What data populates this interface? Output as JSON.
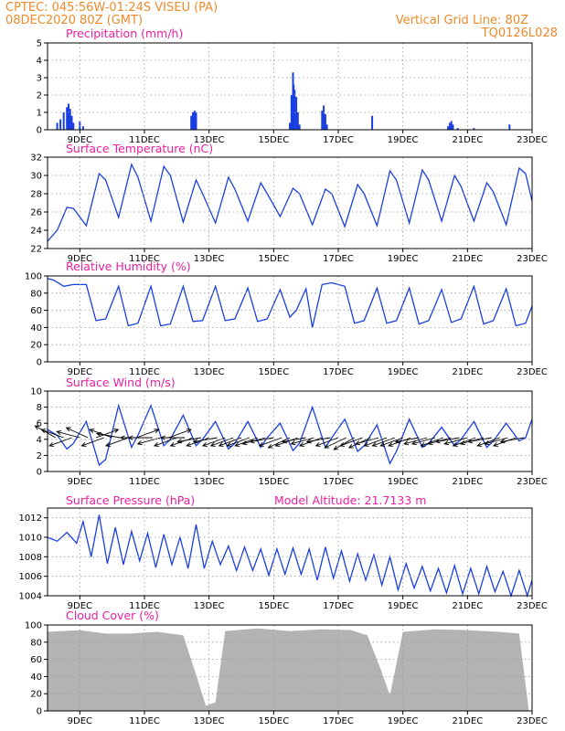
{
  "header": {
    "station": "CPTEC:   045:56W-01:24S   VISEU  (PA)",
    "run": "08DEC2020  80Z  (GMT)",
    "grid_note": "Vertical Grid Line: 80Z",
    "code": "TQ0126L028"
  },
  "colors": {
    "header": "#ee8a2a",
    "title": "#ee1fa0",
    "series": "#1a3fe0",
    "cloud": "#b3b3b3"
  },
  "x_axis": {
    "start_day": 8,
    "end_day": 23,
    "tick_days": [
      9,
      11,
      13,
      15,
      17,
      19,
      21,
      23
    ],
    "tick_labels": [
      "9DEC",
      "11DEC",
      "13DEC",
      "15DEC",
      "17DEC",
      "19DEC",
      "21DEC",
      "23DEC"
    ]
  },
  "chart_data": [
    {
      "id": "precip",
      "type": "bar",
      "title": "Precipitation (mm/h)",
      "ylim": [
        0,
        5
      ],
      "yticks": [
        0,
        1,
        2,
        3,
        4,
        5
      ],
      "x": [
        8.3,
        8.4,
        8.5,
        8.6,
        8.65,
        8.7,
        8.75,
        8.8,
        9.0,
        9.1,
        12.45,
        12.5,
        12.55,
        12.6,
        15.5,
        15.55,
        15.6,
        15.62,
        15.65,
        15.7,
        15.75,
        15.8,
        16.5,
        16.55,
        16.6,
        16.65,
        18.05,
        20.4,
        20.45,
        20.5,
        20.55,
        20.7,
        21.2,
        22.3
      ],
      "y": [
        0.4,
        0.6,
        1.0,
        1.3,
        1.5,
        1.2,
        0.8,
        0.4,
        0.5,
        0.2,
        0.8,
        1.0,
        1.1,
        1.0,
        0.4,
        2.0,
        3.3,
        2.6,
        2.3,
        1.9,
        1.0,
        0.3,
        1.1,
        1.4,
        0.9,
        0.3,
        0.8,
        0.2,
        0.4,
        0.5,
        0.3,
        0.1,
        0.1,
        0.3
      ]
    },
    {
      "id": "temp",
      "type": "line",
      "title": "Surface Temperature (nC)",
      "ylim": [
        22,
        32
      ],
      "yticks": [
        22,
        24,
        26,
        28,
        30,
        32
      ],
      "x": [
        8.0,
        8.3,
        8.6,
        8.8,
        9.2,
        9.6,
        9.8,
        10.2,
        10.6,
        10.8,
        11.2,
        11.6,
        11.8,
        12.2,
        12.6,
        12.8,
        13.2,
        13.6,
        13.8,
        14.2,
        14.6,
        14.8,
        15.2,
        15.6,
        15.8,
        16.2,
        16.6,
        16.8,
        17.2,
        17.6,
        17.8,
        18.2,
        18.6,
        18.8,
        19.2,
        19.6,
        19.8,
        20.2,
        20.6,
        20.8,
        21.2,
        21.6,
        21.8,
        22.2,
        22.6,
        22.8,
        23.0
      ],
      "y": [
        22.8,
        24.0,
        26.5,
        26.4,
        24.5,
        30.2,
        29.5,
        25.4,
        31.2,
        29.8,
        25.0,
        31.0,
        30.0,
        24.9,
        29.5,
        28.0,
        24.8,
        29.8,
        28.5,
        25.0,
        29.2,
        28.0,
        25.5,
        28.6,
        28.0,
        24.6,
        28.5,
        28.0,
        24.4,
        29.0,
        28.0,
        24.5,
        30.5,
        29.5,
        24.8,
        30.6,
        29.5,
        25.0,
        30.0,
        28.8,
        25.0,
        29.2,
        28.2,
        24.6,
        30.8,
        30.2,
        27.2
      ]
    },
    {
      "id": "rh",
      "type": "line",
      "title": "Relative Humidity (%)",
      "ylim": [
        0,
        100
      ],
      "yticks": [
        0,
        20,
        40,
        60,
        80,
        100
      ],
      "x": [
        8.0,
        8.2,
        8.5,
        8.8,
        9.2,
        9.5,
        9.8,
        10.2,
        10.5,
        10.8,
        11.2,
        11.5,
        11.8,
        12.2,
        12.5,
        12.8,
        13.2,
        13.5,
        13.8,
        14.2,
        14.5,
        14.8,
        15.2,
        15.5,
        15.7,
        16.0,
        16.2,
        16.5,
        16.8,
        17.2,
        17.5,
        17.8,
        18.2,
        18.5,
        18.8,
        19.2,
        19.5,
        19.8,
        20.2,
        20.5,
        20.8,
        21.2,
        21.5,
        21.8,
        22.2,
        22.5,
        22.8,
        23.0
      ],
      "y": [
        97,
        95,
        88,
        90,
        90,
        48,
        50,
        88,
        42,
        45,
        88,
        42,
        44,
        88,
        47,
        48,
        88,
        48,
        50,
        86,
        47,
        50,
        84,
        52,
        60,
        85,
        40,
        90,
        92,
        88,
        45,
        48,
        86,
        45,
        48,
        86,
        44,
        48,
        84,
        46,
        50,
        88,
        44,
        48,
        85,
        42,
        45,
        65
      ]
    },
    {
      "id": "wind",
      "type": "line",
      "title": "Surface Wind (m/s)",
      "ylim": [
        0,
        10
      ],
      "yticks": [
        0,
        2,
        4,
        6,
        8,
        10
      ],
      "x": [
        8.0,
        8.3,
        8.6,
        8.8,
        9.2,
        9.6,
        9.8,
        10.2,
        10.6,
        10.8,
        11.2,
        11.6,
        11.8,
        12.2,
        12.6,
        12.8,
        13.2,
        13.6,
        13.8,
        14.2,
        14.6,
        14.8,
        15.2,
        15.6,
        15.8,
        16.2,
        16.6,
        16.8,
        17.2,
        17.6,
        17.8,
        18.2,
        18.6,
        18.8,
        19.2,
        19.6,
        19.8,
        20.2,
        20.6,
        20.8,
        21.2,
        21.6,
        21.8,
        22.2,
        22.6,
        22.8,
        23.0
      ],
      "y": [
        5.2,
        4.5,
        2.8,
        3.5,
        6.2,
        0.8,
        1.5,
        8.2,
        3.0,
        4.5,
        8.2,
        3.2,
        4.0,
        7.0,
        3.2,
        4.0,
        6.2,
        2.8,
        3.5,
        6.2,
        3.0,
        4.2,
        6.0,
        2.6,
        3.5,
        8.0,
        3.0,
        4.2,
        6.5,
        2.5,
        3.2,
        5.8,
        1.0,
        2.5,
        6.5,
        3.0,
        3.5,
        5.5,
        3.2,
        4.0,
        6.2,
        3.0,
        3.8,
        6.0,
        3.8,
        4.2,
        6.5
      ],
      "vectors_x": [
        8.25,
        8.5,
        8.75,
        9.0,
        9.25,
        9.5,
        9.75,
        10.0,
        10.25,
        10.5,
        10.75,
        11.0,
        11.25,
        11.5,
        11.75,
        12.0,
        12.25,
        12.5,
        12.75,
        13.0,
        13.25,
        13.5,
        13.75,
        14.0,
        14.25,
        14.5,
        14.75,
        15.0,
        15.25,
        15.5,
        15.75,
        16.0,
        16.25,
        16.5,
        16.75,
        17.0,
        17.25,
        17.5,
        17.75,
        18.0,
        18.25,
        18.5,
        18.75,
        19.0,
        19.25,
        19.5,
        19.75,
        20.0,
        20.25,
        20.5,
        20.75,
        21.0,
        21.25,
        21.5,
        21.75,
        22.0,
        22.25,
        22.5,
        22.75
      ],
      "vectors_dir_deg": [
        150,
        160,
        200,
        165,
        155,
        20,
        200,
        160,
        170,
        200,
        20,
        180,
        180,
        195,
        20,
        200,
        180,
        200,
        190,
        200,
        190,
        200,
        200,
        200,
        200,
        200,
        195,
        190,
        200,
        205,
        200,
        190,
        195,
        200,
        190,
        200,
        205,
        210,
        200,
        205,
        195,
        200,
        200,
        200,
        200,
        190,
        195,
        195,
        200,
        195,
        190,
        195,
        200,
        195,
        190,
        200,
        195,
        200,
        190
      ]
    },
    {
      "id": "pressure",
      "type": "line",
      "title": "Surface Pressure (hPa)",
      "annotation": "Model Altitude: 21.7133 m",
      "ylim": [
        1004,
        1013
      ],
      "yticks": [
        1004,
        1006,
        1008,
        1010,
        1012
      ],
      "x": [
        8.0,
        8.3,
        8.6,
        8.9,
        9.1,
        9.35,
        9.6,
        9.85,
        10.1,
        10.35,
        10.6,
        10.85,
        11.1,
        11.35,
        11.6,
        11.85,
        12.1,
        12.35,
        12.6,
        12.85,
        13.1,
        13.35,
        13.6,
        13.85,
        14.1,
        14.35,
        14.6,
        14.85,
        15.1,
        15.35,
        15.6,
        15.85,
        16.1,
        16.35,
        16.6,
        16.85,
        17.1,
        17.35,
        17.6,
        17.85,
        18.1,
        18.35,
        18.6,
        18.85,
        19.1,
        19.35,
        19.6,
        19.85,
        20.1,
        20.35,
        20.6,
        20.85,
        21.1,
        21.35,
        21.6,
        21.85,
        22.1,
        22.35,
        22.6,
        22.85,
        23.0
      ],
      "y": [
        1010.0,
        1009.6,
        1010.5,
        1009.4,
        1011.6,
        1008.0,
        1012.3,
        1007.3,
        1011.0,
        1007.2,
        1010.6,
        1007.6,
        1010.4,
        1006.9,
        1010.3,
        1007.2,
        1010.0,
        1006.8,
        1011.3,
        1006.8,
        1009.6,
        1007.2,
        1009.1,
        1006.6,
        1009.0,
        1006.6,
        1008.8,
        1006.1,
        1008.8,
        1006.2,
        1008.9,
        1006.2,
        1008.8,
        1005.6,
        1009.0,
        1005.8,
        1008.6,
        1005.5,
        1008.3,
        1005.6,
        1008.2,
        1005.1,
        1008.0,
        1004.6,
        1007.3,
        1004.8,
        1007.0,
        1004.5,
        1006.8,
        1004.3,
        1007.1,
        1004.2,
        1006.8,
        1004.2,
        1007.0,
        1004.4,
        1006.5,
        1004.0,
        1006.6,
        1004.0,
        1005.6
      ]
    },
    {
      "id": "cloud",
      "type": "bar",
      "title": "Cloud Cover (%)",
      "ylim": [
        0,
        100
      ],
      "yticks": [
        0,
        20,
        40,
        60,
        80,
        100
      ],
      "x": [
        8.0,
        9.0,
        9.8,
        10.5,
        11.4,
        12.2,
        12.6,
        12.9,
        13.2,
        13.5,
        14.5,
        15.5,
        16.5,
        17.4,
        17.9,
        18.3,
        18.6,
        19.0,
        20.0,
        21.0,
        22.0,
        22.6,
        22.9
      ],
      "y": [
        92,
        94,
        90,
        90,
        92,
        88,
        42,
        6,
        10,
        93,
        96,
        93,
        95,
        94,
        88,
        50,
        18,
        92,
        95,
        94,
        92,
        90,
        0
      ]
    }
  ]
}
